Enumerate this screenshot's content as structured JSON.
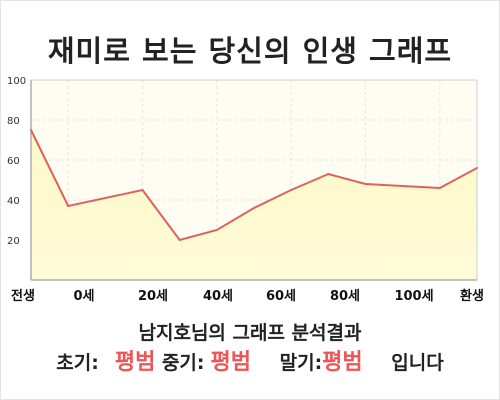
{
  "title": "재미로 보는 당신의 인생 그래프",
  "chart_data": {
    "type": "area",
    "categories": [
      "전생",
      "0세",
      "20세",
      "40세",
      "60세",
      "80세",
      "100세",
      "환생"
    ],
    "x": [
      -10,
      0,
      20,
      30,
      40,
      50,
      60,
      70,
      80,
      90,
      100,
      110
    ],
    "values": [
      75,
      37,
      45,
      20,
      25,
      36,
      45,
      53,
      48,
      47,
      46,
      56
    ],
    "ylim": [
      0,
      100
    ],
    "yticks": [
      20,
      40,
      60,
      80,
      100
    ],
    "grid": true,
    "colors": {
      "line": "#e06060",
      "fill_top": "#fdf9c8",
      "fill_bottom": "#fefbd8",
      "plot_bg": "#fefdf2",
      "grid": "#e4e4e4"
    }
  },
  "result": {
    "title": "남지호님의 그래프 분석결과",
    "early_label": "초기:",
    "early_value": "평범",
    "mid_label": "중기:",
    "mid_value": "평범",
    "late_label": "말기:",
    "late_value": "평범",
    "suffix": "입니다"
  }
}
